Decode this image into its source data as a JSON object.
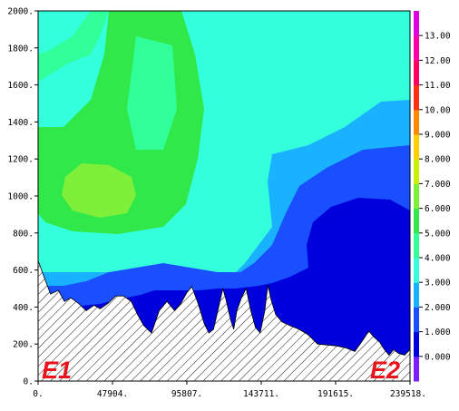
{
  "chart_data": {
    "type": "heatmap",
    "title": "",
    "xlabel": "",
    "ylabel": "",
    "xlim": [
      0,
      239518
    ],
    "ylim": [
      0,
      2000
    ],
    "x_ticks": [
      {
        "value": 0,
        "label": "0."
      },
      {
        "value": 47904,
        "label": "47904."
      },
      {
        "value": 95807,
        "label": "95807."
      },
      {
        "value": 143711,
        "label": "143711."
      },
      {
        "value": 191615,
        "label": "191615."
      },
      {
        "value": 239518,
        "label": "239518."
      }
    ],
    "y_ticks": [
      {
        "value": 0,
        "label": "0."
      },
      {
        "value": 200,
        "label": "200."
      },
      {
        "value": 400,
        "label": "400."
      },
      {
        "value": 600,
        "label": "600."
      },
      {
        "value": 800,
        "label": "800."
      },
      {
        "value": 1000,
        "label": "1000."
      },
      {
        "value": 1200,
        "label": "1200."
      },
      {
        "value": 1400,
        "label": "1400."
      },
      {
        "value": 1600,
        "label": "1600."
      },
      {
        "value": 1800,
        "label": "1800."
      },
      {
        "value": 2000,
        "label": "2000."
      }
    ],
    "colorbar": {
      "levels": [
        -1,
        0,
        1,
        2,
        3,
        4,
        5,
        6,
        7,
        8,
        9,
        10,
        11,
        12,
        13,
        14
      ],
      "labels": [
        "0.000",
        "1.000",
        "2.000",
        "3.000",
        "4.000",
        "5.000",
        "6.000",
        "7.000",
        "8.000",
        "9.000",
        "10.00",
        "11.00",
        "12.00",
        "13.00"
      ],
      "colors": [
        "#7a1eff",
        "#0000dd",
        "#1a4fff",
        "#19b2ff",
        "#33ffdd",
        "#30ff9a",
        "#31e84a",
        "#7ef03a",
        "#c8f000",
        "#ffd000",
        "#ff8a00",
        "#ff3010",
        "#ff0060",
        "#ff00a8",
        "#e000e0"
      ]
    },
    "terrain": [
      [
        0,
        650
      ],
      [
        4000,
        560
      ],
      [
        8000,
        470
      ],
      [
        13000,
        490
      ],
      [
        17000,
        430
      ],
      [
        21000,
        450
      ],
      [
        26000,
        420
      ],
      [
        31000,
        380
      ],
      [
        36000,
        410
      ],
      [
        40000,
        390
      ],
      [
        45000,
        420
      ],
      [
        50000,
        460
      ],
      [
        55000,
        460
      ],
      [
        60000,
        430
      ],
      [
        64000,
        360
      ],
      [
        68000,
        300
      ],
      [
        73000,
        260
      ],
      [
        78000,
        380
      ],
      [
        83000,
        430
      ],
      [
        88000,
        380
      ],
      [
        92000,
        420
      ],
      [
        96000,
        480
      ],
      [
        99000,
        510
      ],
      [
        103000,
        420
      ],
      [
        107000,
        310
      ],
      [
        110000,
        260
      ],
      [
        113000,
        280
      ],
      [
        116000,
        390
      ],
      [
        119000,
        500
      ],
      [
        121000,
        440
      ],
      [
        124000,
        330
      ],
      [
        126000,
        280
      ],
      [
        128000,
        380
      ],
      [
        131000,
        450
      ],
      [
        134000,
        500
      ],
      [
        137000,
        380
      ],
      [
        140000,
        290
      ],
      [
        143000,
        260
      ],
      [
        146000,
        380
      ],
      [
        148000,
        520
      ],
      [
        150000,
        440
      ],
      [
        153000,
        360
      ],
      [
        157000,
        320
      ],
      [
        162000,
        300
      ],
      [
        168000,
        280
      ],
      [
        174000,
        250
      ],
      [
        180000,
        200
      ],
      [
        186000,
        195
      ],
      [
        192000,
        190
      ],
      [
        198000,
        180
      ],
      [
        204000,
        160
      ],
      [
        209000,
        220
      ],
      [
        213000,
        270
      ],
      [
        216000,
        240
      ],
      [
        220000,
        210
      ],
      [
        223000,
        170
      ],
      [
        226000,
        140
      ],
      [
        229000,
        170
      ],
      [
        232000,
        150
      ],
      [
        236000,
        140
      ],
      [
        239518,
        170
      ]
    ],
    "start_label": "E1",
    "end_label": "E2"
  }
}
